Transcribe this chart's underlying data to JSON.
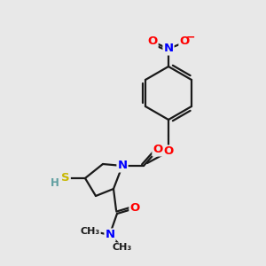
{
  "background_color": "#e8e8e8",
  "bond_color": "#1a1a1a",
  "atom_colors": {
    "N": "#0000ff",
    "O": "#ff0000",
    "S": "#c8b800",
    "H": "#5f9ea0",
    "C": "#1a1a1a"
  }
}
